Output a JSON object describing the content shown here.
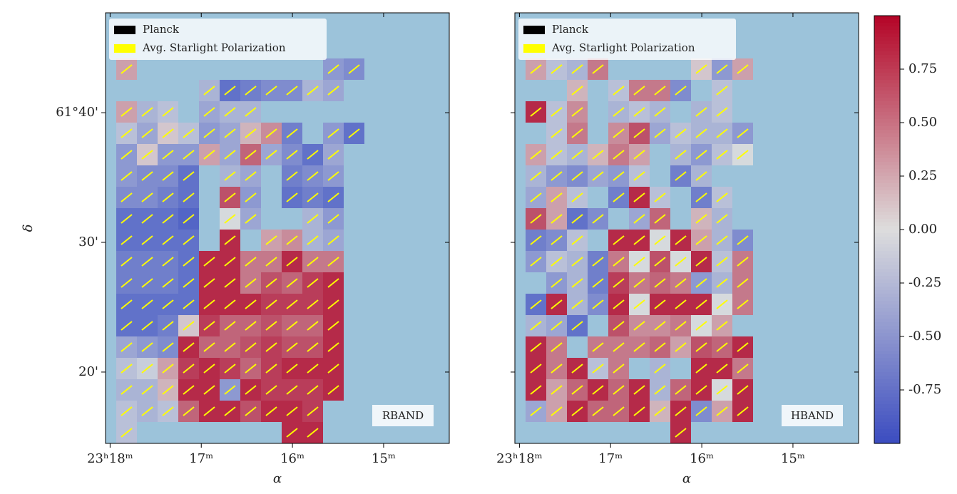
{
  "chart_data": [
    {
      "type": "heatmap",
      "label": "RBAND",
      "xlabel": "α",
      "ylabel": "δ",
      "legend": [
        {
          "name": "Planck",
          "color": "#000000"
        },
        {
          "name": "Avg. Starlight Polarization",
          "color": "#ffff00"
        }
      ],
      "xlim": [
        18.05,
        14.28
      ],
      "ylim": [
        14.5,
        47.7
      ],
      "xticks": [
        {
          "value": 18,
          "label": "23ʰ18ᵐ"
        },
        {
          "value": 17,
          "label": "17ᵐ"
        },
        {
          "value": 16,
          "label": "16ᵐ"
        },
        {
          "value": 15,
          "label": "15ᵐ"
        }
      ],
      "yticks": [
        {
          "value": 40,
          "label": "61°40'"
        },
        {
          "value": 30,
          "label": "30'"
        },
        {
          "value": 20,
          "label": "20'"
        }
      ],
      "values": [
        [
          0.3,
          null,
          null,
          null,
          null,
          null,
          null,
          null,
          null,
          null,
          -0.5,
          -0.6,
          null
        ],
        [
          null,
          null,
          null,
          null,
          -0.3,
          -0.8,
          -0.7,
          -0.6,
          -0.6,
          -0.3,
          -0.4,
          null,
          null
        ],
        [
          0.3,
          -0.3,
          -0.2,
          null,
          -0.4,
          -0.3,
          -0.3,
          null,
          null,
          null,
          null,
          null,
          null
        ],
        [
          -0.2,
          -0.4,
          0.1,
          -0.2,
          -0.5,
          -0.4,
          0.2,
          0.4,
          -0.7,
          null,
          -0.5,
          -0.8,
          null
        ],
        [
          -0.5,
          0.1,
          -0.5,
          -0.5,
          0.3,
          -0.4,
          0.6,
          -0.4,
          -0.6,
          -0.8,
          -0.4,
          null,
          null
        ],
        [
          -0.5,
          -0.6,
          -0.6,
          -0.8,
          null,
          -0.3,
          -0.4,
          null,
          -0.7,
          -0.6,
          -0.5,
          null,
          null
        ],
        [
          -0.6,
          -0.6,
          -0.7,
          -0.8,
          null,
          0.7,
          -0.5,
          null,
          -0.8,
          -0.7,
          -0.8,
          null,
          null
        ],
        [
          -0.8,
          -0.8,
          -0.8,
          -0.9,
          null,
          0.0,
          -0.4,
          null,
          null,
          -0.3,
          -0.5,
          null,
          null
        ],
        [
          -0.8,
          -0.8,
          -0.8,
          -0.8,
          null,
          0.9,
          null,
          0.3,
          0.4,
          -0.3,
          -0.4,
          null,
          null
        ],
        [
          -0.7,
          -0.7,
          -0.7,
          -0.8,
          0.9,
          0.9,
          0.5,
          0.5,
          0.9,
          0.5,
          0.5,
          null,
          null
        ],
        [
          -0.7,
          -0.7,
          -0.7,
          -0.8,
          0.9,
          0.9,
          0.5,
          0.7,
          0.6,
          0.8,
          0.9,
          null,
          null
        ],
        [
          -0.8,
          -0.8,
          -0.8,
          -0.8,
          0.9,
          0.9,
          0.9,
          0.8,
          0.8,
          0.8,
          0.9,
          null,
          null
        ],
        [
          -0.8,
          -0.8,
          -0.7,
          0.1,
          0.8,
          0.6,
          0.6,
          0.7,
          0.6,
          0.6,
          0.9,
          null,
          null
        ],
        [
          -0.4,
          -0.5,
          -0.6,
          0.9,
          0.6,
          0.6,
          0.7,
          0.8,
          0.7,
          0.7,
          0.9,
          null,
          null
        ],
        [
          -0.2,
          -0.1,
          0.3,
          0.8,
          0.9,
          0.8,
          0.6,
          0.8,
          0.9,
          0.9,
          0.9,
          null,
          null
        ],
        [
          -0.3,
          -0.3,
          0.2,
          0.9,
          0.9,
          -0.5,
          0.9,
          0.8,
          0.8,
          0.8,
          0.9,
          null,
          null
        ],
        [
          -0.2,
          -0.3,
          -0.2,
          0.6,
          0.9,
          0.9,
          0.7,
          0.9,
          0.9,
          0.8,
          null,
          null,
          null
        ],
        [
          -0.2,
          null,
          null,
          null,
          null,
          null,
          null,
          null,
          0.9,
          0.9,
          null,
          null,
          null
        ]
      ]
    },
    {
      "type": "heatmap",
      "label": "HBAND",
      "xlabel": "α",
      "legend": [
        {
          "name": "Planck",
          "color": "#000000"
        },
        {
          "name": "Avg. Starlight Polarization",
          "color": "#ffff00"
        }
      ],
      "xlim": [
        18.05,
        14.28
      ],
      "ylim": [
        14.5,
        47.7
      ],
      "xticks": [
        {
          "value": 18,
          "label": "23ʰ18ᵐ"
        },
        {
          "value": 17,
          "label": "17ᵐ"
        },
        {
          "value": 16,
          "label": "16ᵐ"
        },
        {
          "value": 15,
          "label": "15ᵐ"
        }
      ],
      "yticks": [
        40,
        30,
        20
      ],
      "values": [
        [
          0.3,
          -0.2,
          -0.3,
          0.5,
          null,
          null,
          null,
          null,
          0.1,
          -0.5,
          0.3,
          null,
          null
        ],
        [
          null,
          null,
          0.2,
          null,
          -0.2,
          0.5,
          0.5,
          -0.6,
          null,
          -0.2,
          null,
          null,
          null
        ],
        [
          0.9,
          -0.2,
          0.4,
          null,
          -0.3,
          -0.2,
          -0.3,
          null,
          -0.3,
          -0.2,
          null,
          null,
          null
        ],
        [
          null,
          -0.2,
          0.5,
          null,
          0.4,
          0.7,
          -0.4,
          -0.2,
          -0.3,
          -0.3,
          -0.5,
          null,
          null
        ],
        [
          0.3,
          -0.2,
          -0.3,
          0.2,
          0.5,
          0.3,
          null,
          -0.3,
          -0.5,
          -0.2,
          0.0,
          null,
          null
        ],
        [
          -0.3,
          -0.5,
          -0.6,
          -0.4,
          -0.5,
          -0.2,
          null,
          -0.7,
          -0.3,
          null,
          null,
          null,
          null
        ],
        [
          -0.4,
          0.3,
          -0.2,
          null,
          -0.7,
          0.9,
          -0.2,
          null,
          -0.7,
          -0.2,
          null,
          null,
          null
        ],
        [
          0.7,
          0.3,
          -0.8,
          -0.6,
          null,
          -0.4,
          0.6,
          null,
          0.2,
          -0.3,
          null,
          null,
          null
        ],
        [
          -0.7,
          -0.6,
          -0.2,
          null,
          0.9,
          0.9,
          0.0,
          0.9,
          0.3,
          -0.3,
          -0.6,
          null,
          null
        ],
        [
          -0.5,
          -0.2,
          -0.3,
          -0.7,
          0.5,
          0.0,
          0.7,
          0.0,
          0.9,
          -0.2,
          0.5,
          null,
          null
        ],
        [
          null,
          -0.5,
          -0.3,
          -0.7,
          0.8,
          0.5,
          0.6,
          0.5,
          -0.5,
          -0.3,
          0.5,
          null,
          null
        ],
        [
          -0.8,
          0.9,
          -0.3,
          -0.6,
          0.9,
          0.0,
          0.9,
          0.9,
          0.9,
          0.0,
          0.5,
          null,
          null
        ],
        [
          -0.3,
          -0.4,
          -0.8,
          null,
          0.7,
          0.4,
          0.4,
          0.5,
          0.0,
          0.3,
          null,
          null,
          null
        ],
        [
          0.9,
          0.5,
          null,
          0.5,
          0.5,
          0.5,
          0.6,
          0.3,
          0.7,
          0.6,
          0.9,
          null,
          null
        ],
        [
          0.9,
          0.5,
          0.9,
          -0.2,
          0.5,
          null,
          -0.3,
          null,
          0.9,
          0.9,
          0.5,
          null,
          null
        ],
        [
          0.9,
          0.3,
          0.6,
          0.9,
          0.6,
          0.9,
          -0.3,
          0.6,
          0.9,
          0.0,
          0.9,
          null,
          null
        ],
        [
          -0.4,
          0.3,
          0.9,
          0.6,
          0.6,
          0.9,
          0.2,
          0.9,
          -0.6,
          0.3,
          0.9,
          null,
          null
        ],
        [
          null,
          null,
          null,
          null,
          null,
          null,
          null,
          0.9,
          null,
          null,
          null,
          null,
          null
        ]
      ],
      "colorbar": {
        "lim": [
          -1,
          1
        ],
        "colormap": [
          "#3b4cc0",
          "#dddddd",
          "#b40426"
        ],
        "ticks": [
          0.75,
          {
            "value": 0.5,
            "label": "0.50"
          },
          0.25,
          {
            "value": 0,
            "label": "0.00"
          },
          -0.25,
          {
            "value": -0.5,
            "label": "-0.50"
          },
          -0.75
        ]
      }
    }
  ]
}
